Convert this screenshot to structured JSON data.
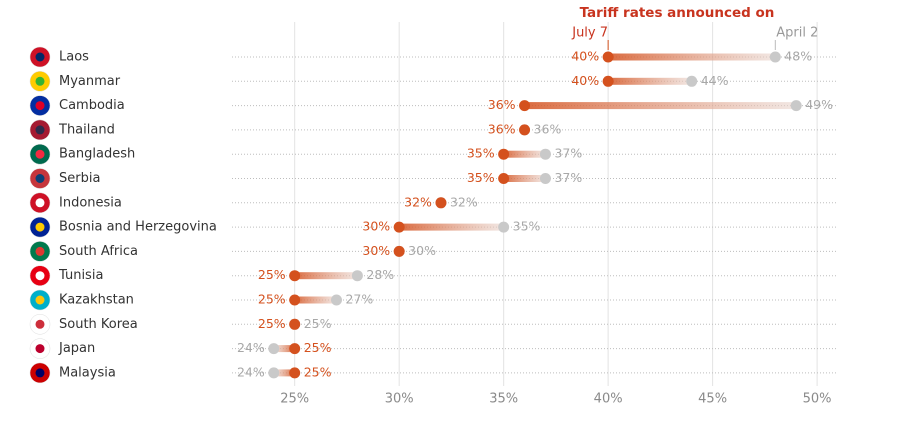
{
  "chart_data": {
    "type": "dumbbell",
    "title": "Tariff rates announced on",
    "categories": [
      "Laos",
      "Myanmar",
      "Cambodia",
      "Thailand",
      "Bangladesh",
      "Serbia",
      "Indonesia",
      "Bosnia and Herzegovina",
      "South Africa",
      "Tunisia",
      "Kazakhstan",
      "South Korea",
      "Japan",
      "Malaysia"
    ],
    "series": [
      {
        "name": "July 7",
        "color": "#d4511e",
        "values": [
          40,
          40,
          36,
          36,
          35,
          35,
          32,
          30,
          30,
          25,
          25,
          25,
          25,
          25
        ],
        "value_labels": [
          "40%",
          "40%",
          "36%",
          "36%",
          "35%",
          "35%",
          "32%",
          "30%",
          "30%",
          "25%",
          "25%",
          "25%",
          "25%",
          "25%"
        ]
      },
      {
        "name": "April 2",
        "color": "#c9c9c9",
        "values": [
          48,
          44,
          49,
          36,
          37,
          37,
          32,
          35,
          30,
          28,
          27,
          25,
          24,
          24
        ],
        "value_labels": [
          "48%",
          "44%",
          "49%",
          "36%",
          "37%",
          "37%",
          "32%",
          "35%",
          "30%",
          "28%",
          "27%",
          "25%",
          "24%",
          "24%"
        ]
      }
    ],
    "xlim": [
      22,
      51
    ],
    "xticks": [
      {
        "value": 25,
        "label": "25%"
      },
      {
        "value": 30,
        "label": "30%"
      },
      {
        "value": 35,
        "label": "35%"
      },
      {
        "value": 40,
        "label": "40%"
      },
      {
        "value": 45,
        "label": "45%"
      },
      {
        "value": 50,
        "label": "50%"
      }
    ],
    "grid": true
  }
}
